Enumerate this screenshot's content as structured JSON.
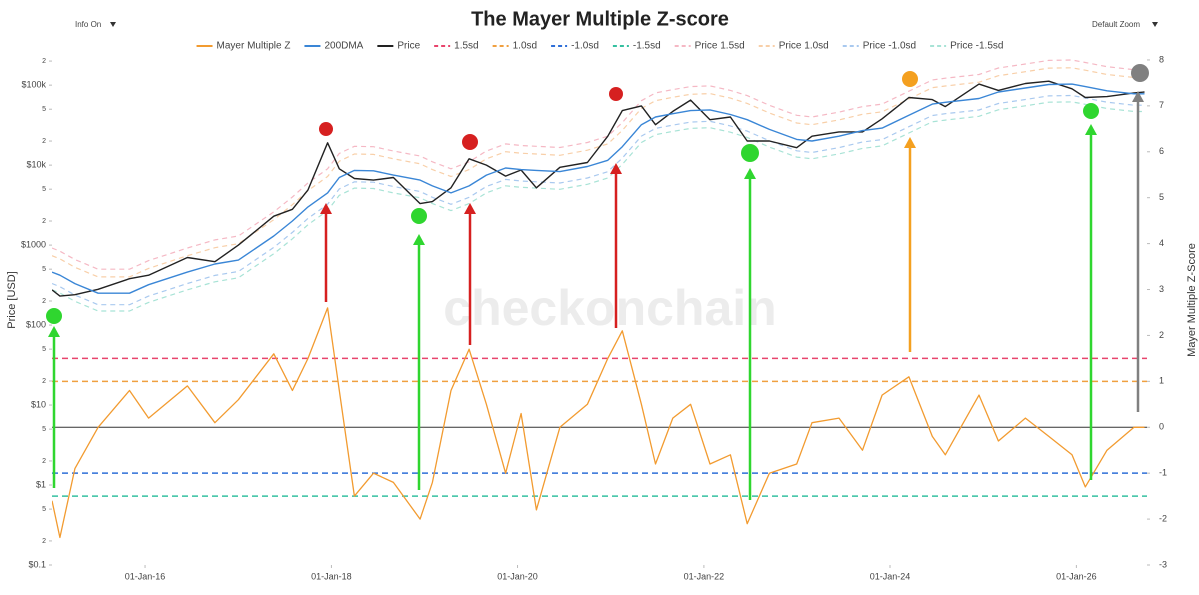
{
  "controls": {
    "info": "Info On",
    "zoom": "Default Zoom"
  },
  "chart_data": {
    "type": "line",
    "title": "The Mayer Multiple Z-score",
    "watermark": "checkonchain",
    "ylabel": "Price [USD]",
    "y2label": "Mayer Multiple Z-Score",
    "ylog": true,
    "grid": false,
    "legend": "top",
    "xlim": [
      "2015-01-01",
      "2026-10-05"
    ],
    "xticks": [
      {
        "value": "2016-01-01",
        "label": "01-Jan-16"
      },
      {
        "value": "2018-01-01",
        "label": "01-Jan-18"
      },
      {
        "value": "2020-01-01",
        "label": "01-Jan-20"
      },
      {
        "value": "2022-01-01",
        "label": "01-Jan-22"
      },
      {
        "value": "2024-01-01",
        "label": "01-Jan-24"
      },
      {
        "value": "2026-01-01",
        "label": "01-Jan-26"
      }
    ],
    "ylim": [
      0.1,
      400000
    ],
    "yticks": [
      {
        "value": 0.1,
        "label": "$0.1"
      },
      {
        "value": 0.2,
        "label": "2"
      },
      {
        "value": 0.5,
        "label": "5"
      },
      {
        "value": 1,
        "label": "$1"
      },
      2,
      5,
      {
        "value": 10,
        "label": "$10"
      },
      {
        "value": 20,
        "label": "2"
      },
      {
        "value": 50,
        "label": "5"
      },
      {
        "value": 100,
        "label": "$100"
      },
      {
        "value": 200,
        "label": "2"
      },
      {
        "value": 500,
        "label": "5"
      },
      {
        "value": 1000,
        "label": "$1000"
      },
      {
        "value": 2000,
        "label": "2"
      },
      {
        "value": 5000,
        "label": "5"
      },
      {
        "value": 10000,
        "label": "$10k"
      },
      {
        "value": 20000,
        "label": "2"
      },
      {
        "value": 50000,
        "label": "5"
      },
      {
        "value": 100000,
        "label": "$100k"
      },
      {
        "value": 200000,
        "label": "2"
      }
    ],
    "y2lim": [
      -3,
      8.5
    ],
    "y2ticks": [
      -3,
      -2,
      -1,
      0,
      1,
      2,
      3,
      4,
      5,
      6,
      7,
      8
    ],
    "x": [
      "2015-01-01",
      "2015-02-01",
      "2015-04-01",
      "2015-07-01",
      "2015-11-01",
      "2016-01-15",
      "2016-06-15",
      "2016-10-01",
      "2017-01-01",
      "2017-05-20",
      "2017-08-01",
      "2017-10-01",
      "2017-12-17",
      "2018-02-01",
      "2018-04-01",
      "2018-06-15",
      "2018-09-01",
      "2018-12-15",
      "2019-02-01",
      "2019-04-15",
      "2019-06-25",
      "2019-09-01",
      "2019-11-15",
      "2020-01-15",
      "2020-03-15",
      "2020-06-15",
      "2020-10-01",
      "2020-12-20",
      "2021-02-15",
      "2021-05-01",
      "2021-06-25",
      "2021-09-01",
      "2021-11-10",
      "2022-01-25",
      "2022-04-15",
      "2022-06-20",
      "2022-09-15",
      "2022-12-31",
      "2023-03-01",
      "2023-06-15",
      "2023-09-15",
      "2023-12-01",
      "2024-03-15",
      "2024-06-15",
      "2024-08-05",
      "2024-12-15",
      "2025-03-01",
      "2025-06-15",
      "2025-09-15",
      "2025-12-15",
      "2026-02-05",
      "2026-05-01",
      "2026-08-15",
      "2026-09-25"
    ],
    "series": [
      {
        "name": "Mayer Multiple Z",
        "color": "#f29b30",
        "axis": "y2",
        "values": [
          -1.6,
          -2.4,
          -0.9,
          0.0,
          0.8,
          0.2,
          0.9,
          0.1,
          0.6,
          1.6,
          0.8,
          1.5,
          2.6,
          0.8,
          -1.5,
          -1.0,
          -1.2,
          -2.0,
          -1.2,
          0.8,
          1.7,
          0.5,
          -1.0,
          0.3,
          -1.8,
          0.0,
          0.5,
          1.5,
          2.1,
          0.5,
          -0.8,
          0.2,
          0.5,
          -0.8,
          -0.6,
          -2.1,
          -1.0,
          -0.8,
          0.1,
          0.2,
          -0.5,
          0.7,
          1.1,
          -0.2,
          -0.6,
          0.7,
          -0.3,
          0.2,
          -0.2,
          -0.6,
          -1.3,
          -0.5,
          0.0,
          0.0
        ]
      },
      {
        "name": "200DMA",
        "color": "#3a86d6",
        "values": [
          460,
          420,
          330,
          250,
          250,
          320,
          460,
          580,
          650,
          1300,
          2000,
          3000,
          4500,
          7000,
          8600,
          8500,
          7500,
          6500,
          5500,
          4500,
          5500,
          7500,
          9200,
          8800,
          8600,
          8300,
          9600,
          11500,
          17000,
          32000,
          40000,
          44000,
          48000,
          49000,
          43000,
          37000,
          28000,
          21000,
          20000,
          23000,
          27000,
          29000,
          42000,
          58000,
          61000,
          68000,
          82000,
          92000,
          102000,
          103000,
          96000,
          85000,
          78000,
          78000
        ]
      },
      {
        "name": "Price",
        "color": "#222222",
        "values": [
          275,
          230,
          240,
          280,
          380,
          420,
          700,
          620,
          1000,
          2300,
          2800,
          4900,
          19000,
          9000,
          6800,
          6500,
          7000,
          3300,
          3500,
          5200,
          12000,
          10000,
          7300,
          8700,
          5200,
          9400,
          10800,
          23000,
          48000,
          55000,
          32000,
          47000,
          65000,
          37000,
          40000,
          20000,
          20000,
          16500,
          23000,
          26000,
          26000,
          38000,
          70000,
          66000,
          54000,
          103000,
          86000,
          105000,
          112000,
          90000,
          70000,
          72000,
          80000,
          82000
        ]
      },
      {
        "name": "1.5sd",
        "color": "#e8446c",
        "axis": "y2",
        "dash": true,
        "value": 1.5
      },
      {
        "name": "1.0sd",
        "color": "#f0a040",
        "axis": "y2",
        "dash": true,
        "value": 1.0
      },
      {
        "name": "-1.0sd",
        "color": "#2f6fd8",
        "axis": "y2",
        "dash": true,
        "value": -1.0
      },
      {
        "name": "-1.5sd",
        "color": "#34c0a0",
        "axis": "y2",
        "dash": true,
        "value": -1.5
      },
      {
        "name": "Price 1.5sd",
        "color": "#f5b8c4",
        "dash": true,
        "values": [
          920,
          840,
          660,
          500,
          500,
          640,
          920,
          1160,
          1300,
          2600,
          4000,
          6000,
          9000,
          14000,
          17200,
          17000,
          15000,
          13000,
          11000,
          9000,
          11000,
          15000,
          18400,
          17600,
          17200,
          16600,
          19200,
          23000,
          34000,
          64000,
          80000,
          88000,
          96000,
          98000,
          86000,
          74000,
          56000,
          42000,
          40000,
          46000,
          54000,
          58000,
          84000,
          116000,
          122000,
          136000,
          164000,
          184000,
          204000,
          206000,
          192000,
          170000,
          156000,
          156000
        ]
      },
      {
        "name": "Price 1.0sd",
        "color": "#f8cfa8",
        "dash": true,
        "values": [
          736,
          672,
          528,
          400,
          400,
          512,
          736,
          928,
          1040,
          2080,
          3200,
          4800,
          7200,
          11200,
          13760,
          13600,
          12000,
          10400,
          8800,
          7200,
          8800,
          12000,
          14720,
          14080,
          13760,
          13280,
          15360,
          18400,
          27200,
          51200,
          64000,
          70400,
          76800,
          78400,
          68800,
          59200,
          44800,
          33600,
          32000,
          36800,
          43200,
          46400,
          67200,
          92800,
          97600,
          108800,
          131200,
          147200,
          163200,
          164800,
          153600,
          136000,
          124800,
          124800
        ]
      },
      {
        "name": "Price -1.0sd",
        "color": "#a9c9ef",
        "dash": true,
        "values": [
          331,
          302,
          238,
          180,
          180,
          230,
          331,
          418,
          468,
          936,
          1440,
          2160,
          3240,
          5040,
          6192,
          6120,
          5400,
          4680,
          3960,
          3240,
          3960,
          5400,
          6624,
          6336,
          6192,
          5976,
          6912,
          8280,
          12240,
          23040,
          28800,
          31680,
          34560,
          35280,
          30960,
          26640,
          20160,
          15120,
          14400,
          16560,
          19440,
          20880,
          30240,
          41760,
          43920,
          48960,
          59040,
          66240,
          73440,
          74160,
          69120,
          61200,
          56160,
          56160
        ]
      },
      {
        "name": "Price -1.5sd",
        "color": "#a8e3d6",
        "dash": true,
        "values": [
          276,
          252,
          198,
          150,
          150,
          192,
          276,
          348,
          390,
          780,
          1200,
          1800,
          2700,
          4200,
          5160,
          5100,
          4500,
          3900,
          3300,
          2700,
          3300,
          4500,
          5520,
          5280,
          5160,
          4980,
          5760,
          6900,
          10200,
          19200,
          24000,
          26400,
          28800,
          29400,
          25800,
          22200,
          16800,
          12600,
          12000,
          13800,
          16200,
          17400,
          25200,
          34800,
          36600,
          40800,
          49200,
          55200,
          61200,
          61800,
          57600,
          51000,
          46800,
          46800
        ]
      }
    ]
  }
}
